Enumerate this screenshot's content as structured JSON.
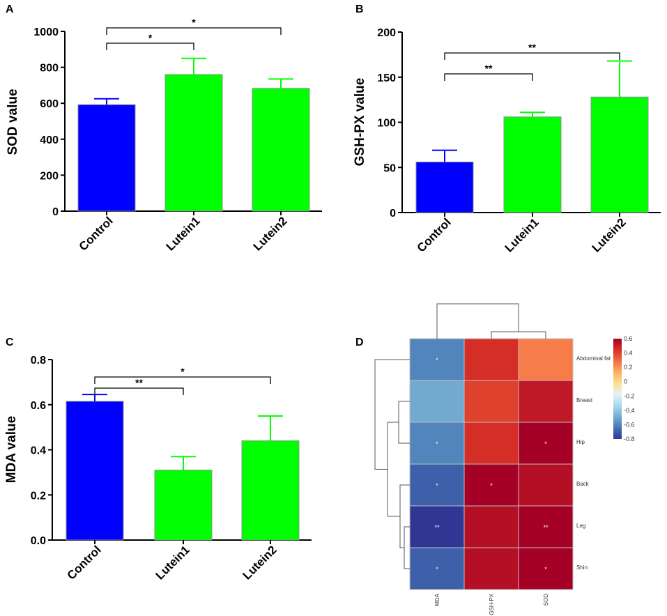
{
  "chart_data": [
    {
      "panel": "A",
      "type": "bar",
      "ylabel": "SOD value",
      "categories": [
        "Control",
        "Lutein1",
        "Lutein2"
      ],
      "values": [
        592,
        760,
        683
      ],
      "errors": [
        33,
        90,
        52
      ],
      "colors": [
        "#0000ff",
        "#00ff00",
        "#00ff00"
      ],
      "ylim": [
        0,
        1000
      ],
      "yticks": [
        0,
        200,
        400,
        600,
        800,
        1000
      ],
      "ytick_labels": [
        "0",
        "200",
        "400",
        "600",
        "800",
        "1000"
      ],
      "significance": [
        {
          "from": "Control",
          "to": "Lutein1",
          "label": "*"
        },
        {
          "from": "Control",
          "to": "Lutein2",
          "label": "*"
        }
      ]
    },
    {
      "panel": "B",
      "type": "bar",
      "ylabel": "GSH-PX value",
      "categories": [
        "Control",
        "Lutein1",
        "Lutein2"
      ],
      "values": [
        56,
        106,
        128
      ],
      "errors": [
        13,
        5,
        40
      ],
      "colors": [
        "#0000ff",
        "#00ff00",
        "#00ff00"
      ],
      "ylim": [
        0,
        200
      ],
      "yticks": [
        0,
        50,
        100,
        150,
        200
      ],
      "ytick_labels": [
        "0",
        "50",
        "100",
        "150",
        "200"
      ],
      "significance": [
        {
          "from": "Control",
          "to": "Lutein1",
          "label": "**"
        },
        {
          "from": "Control",
          "to": "Lutein2",
          "label": "**"
        }
      ]
    },
    {
      "panel": "C",
      "type": "bar",
      "ylabel": "MDA value",
      "categories": [
        "Control",
        "Lutein1",
        "Lutein2"
      ],
      "values": [
        0.615,
        0.31,
        0.44
      ],
      "errors": [
        0.03,
        0.06,
        0.11
      ],
      "colors": [
        "#0000ff",
        "#00ff00",
        "#00ff00"
      ],
      "ylim": [
        0,
        0.8
      ],
      "yticks": [
        0,
        0.2,
        0.4,
        0.6,
        0.8
      ],
      "ytick_labels": [
        "0.0",
        "0.2",
        "0.4",
        "0.6",
        "0.8"
      ],
      "significance": [
        {
          "from": "Control",
          "to": "Lutein1",
          "label": "**"
        },
        {
          "from": "Control",
          "to": "Lutein2",
          "label": "*"
        }
      ]
    },
    {
      "panel": "D",
      "type": "heatmap",
      "columns": [
        "MDA",
        "GSH-PX",
        "SOD"
      ],
      "rows": [
        "Abdominal fat",
        "Breast",
        "Hip",
        "Back",
        "Leg",
        "Shin"
      ],
      "values": [
        [
          -0.6,
          0.45,
          0.25
        ],
        [
          -0.5,
          0.4,
          0.52
        ],
        [
          -0.6,
          0.45,
          0.6
        ],
        [
          -0.7,
          0.6,
          0.55
        ],
        [
          -0.8,
          0.55,
          0.6
        ],
        [
          -0.7,
          0.55,
          0.6
        ]
      ],
      "marks": [
        [
          "*",
          "",
          ""
        ],
        [
          "",
          "",
          ""
        ],
        [
          "*",
          "",
          "*"
        ],
        [
          "*",
          "*",
          ""
        ],
        [
          "**",
          "",
          "**"
        ],
        [
          "*",
          "",
          "*"
        ]
      ],
      "colorbar": {
        "min": -0.8,
        "max": 0.6,
        "ticks": [
          0.6,
          0.4,
          0.2,
          0,
          -0.2,
          -0.4,
          -0.6,
          -0.8
        ],
        "tick_labels": [
          "0.6",
          "0.4",
          "0.2",
          "0",
          "-0.2",
          "-0.4",
          "-0.6",
          "-0.8"
        ],
        "colors": [
          "#313695",
          "#4575b4",
          "#74add1",
          "#abd9e9",
          "#e0f3f8",
          "#fee090",
          "#fdae61",
          "#f46d43",
          "#d73027",
          "#a50026"
        ]
      }
    }
  ]
}
